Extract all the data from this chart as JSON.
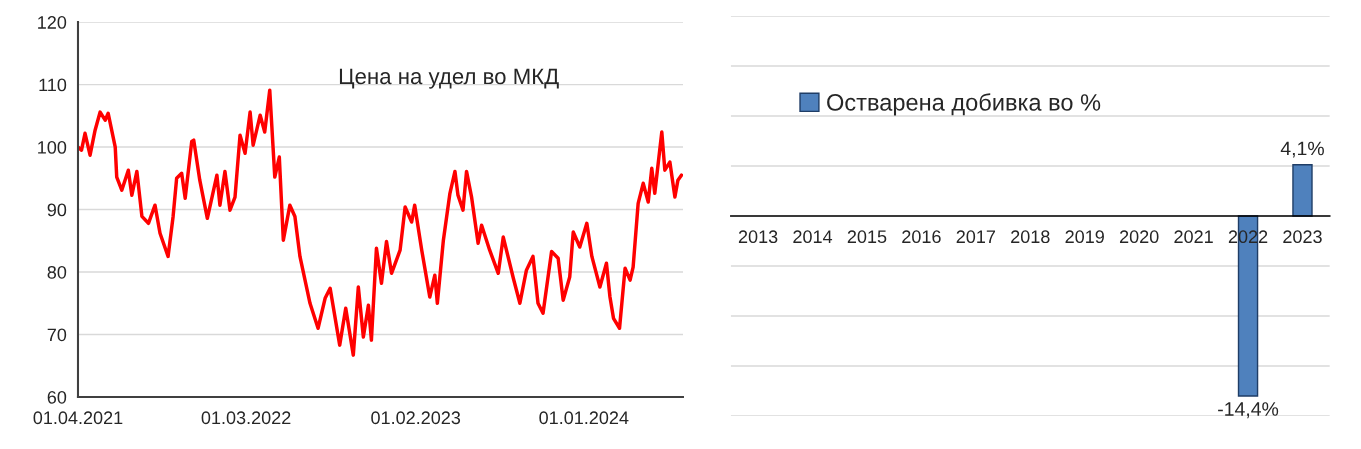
{
  "chart_data": [
    {
      "type": "line",
      "ylim": [
        60,
        120
      ],
      "yticks": [
        60,
        70,
        80,
        90,
        100,
        110,
        120
      ],
      "xlim": [
        "2021-04-01",
        "2024-07-16"
      ],
      "xticks": [
        {
          "value": "2021-04-01",
          "label": "01.04.2021"
        },
        {
          "value": "2022-03-01",
          "label": "01.03.2022"
        },
        {
          "value": "2023-02-01",
          "label": "01.02.2023"
        },
        {
          "value": "2024-01-01",
          "label": "01.01.2024"
        }
      ],
      "grid": "y",
      "legend": false,
      "series": [
        {
          "name": "Цена на удел во МКД",
          "color": "#ff0000",
          "line_style": "solid",
          "marker": "none",
          "x": [
            "2021-04-01",
            "2021-04-08",
            "2021-04-15",
            "2021-04-25",
            "2021-05-05",
            "2021-05-15",
            "2021-05-25",
            "2021-05-31",
            "2021-06-14",
            "2021-06-17",
            "2021-06-27",
            "2021-07-10",
            "2021-07-17",
            "2021-07-27",
            "2021-08-06",
            "2021-08-19",
            "2021-09-01",
            "2021-09-11",
            "2021-09-27",
            "2021-10-07",
            "2021-10-14",
            "2021-10-24",
            "2021-10-31",
            "2021-11-13",
            "2021-11-17",
            "2021-11-29",
            "2021-12-14",
            "2022-01-02",
            "2022-01-08",
            "2022-01-18",
            "2022-01-28",
            "2022-02-07",
            "2022-02-17",
            "2022-02-27",
            "2022-03-09",
            "2022-03-15",
            "2022-03-29",
            "2022-04-07",
            "2022-04-17",
            "2022-04-27",
            "2022-05-06",
            "2022-05-14",
            "2022-05-27",
            "2022-06-06",
            "2022-06-16",
            "2022-07-06",
            "2022-07-22",
            "2022-08-05",
            "2022-08-15",
            "2022-09-03",
            "2022-09-15",
            "2022-09-30",
            "2022-10-10",
            "2022-10-20",
            "2022-10-30",
            "2022-11-05",
            "2022-11-15",
            "2022-11-25",
            "2022-12-05",
            "2022-12-15",
            "2023-01-01",
            "2023-01-11",
            "2023-01-24",
            "2023-01-30",
            "2023-02-13",
            "2023-03-01",
            "2023-03-11",
            "2023-03-16",
            "2023-03-28",
            "2023-04-10",
            "2023-04-20",
            "2023-04-26",
            "2023-05-06",
            "2023-05-13",
            "2023-05-23",
            "2023-06-05",
            "2023-06-12",
            "2023-06-28",
            "2023-07-15",
            "2023-07-25",
            "2023-08-14",
            "2023-08-27",
            "2023-09-09",
            "2023-09-22",
            "2023-10-02",
            "2023-10-12",
            "2023-10-29",
            "2023-11-11",
            "2023-11-21",
            "2023-12-04",
            "2023-12-11",
            "2023-12-24",
            "2024-01-07",
            "2024-01-17",
            "2024-02-02",
            "2024-02-15",
            "2024-02-22",
            "2024-02-29",
            "2024-03-12",
            "2024-03-23",
            "2024-04-02",
            "2024-04-08",
            "2024-04-18",
            "2024-04-28",
            "2024-05-08",
            "2024-05-15",
            "2024-05-21",
            "2024-06-04",
            "2024-06-10",
            "2024-06-20",
            "2024-06-30",
            "2024-07-06",
            "2024-07-13"
          ],
          "values": [
            100,
            99.5,
            102.2,
            98.7,
            102.7,
            105.6,
            104.3,
            105.4,
            100,
            95.2,
            93.1,
            96.3,
            92.3,
            96.1,
            88.9,
            87.8,
            90.7,
            86.2,
            82.5,
            88.9,
            95,
            95.8,
            91.8,
            100.9,
            101.1,
            94.7,
            88.6,
            95.5,
            90.7,
            96.1,
            89.9,
            92,
            101.9,
            99,
            105.6,
            100.3,
            105.1,
            102.4,
            109.1,
            95.2,
            98.4,
            85.1,
            90.7,
            88.9,
            82.5,
            75,
            71,
            75.8,
            77.4,
            68.3,
            74.2,
            66.7,
            77.6,
            69.6,
            74.7,
            69.1,
            83.8,
            78.2,
            84.9,
            79.8,
            83.5,
            90.4,
            88,
            90.7,
            83.5,
            76,
            79.5,
            75,
            85.1,
            92.6,
            96.1,
            92.3,
            89.9,
            96.1,
            92,
            84.6,
            87.5,
            83.5,
            79.8,
            85.6,
            79,
            75,
            80.3,
            82.5,
            75,
            73.4,
            83.3,
            82.2,
            75.5,
            79.2,
            86.4,
            84,
            87.8,
            82.5,
            77.6,
            81.4,
            76,
            72.6,
            71,
            80.6,
            78.7,
            80.8,
            91,
            94.2,
            91.2,
            96.6,
            92.6,
            102.4,
            96.3,
            97.6,
            92,
            94.7,
            95.5
          ]
        }
      ]
    },
    {
      "type": "bar",
      "categories": [
        "2013",
        "2014",
        "2015",
        "2016",
        "2017",
        "2018",
        "2019",
        "2020",
        "2021",
        "2022",
        "2023"
      ],
      "ylim": [
        -16,
        16
      ],
      "yticks": [
        {
          "value": -16,
          "label": null
        },
        {
          "value": -12,
          "label": null
        },
        {
          "value": -8,
          "label": null
        },
        {
          "value": -4,
          "label": null
        },
        {
          "value": 0,
          "label": null
        },
        {
          "value": 4,
          "label": null
        },
        {
          "value": 8,
          "label": null
        },
        {
          "value": 12,
          "label": null
        },
        {
          "value": 16,
          "label": null
        }
      ],
      "grid": "y",
      "legend": "top left",
      "tick_labels": "x",
      "series": [
        {
          "name": "Остварена добивка во %",
          "color": "#4f81bd",
          "values": [
            null,
            null,
            null,
            null,
            null,
            null,
            null,
            null,
            null,
            -14.4,
            4.1
          ],
          "value_labels": [
            null,
            null,
            null,
            null,
            null,
            null,
            null,
            null,
            null,
            "-14,4%",
            "4,1%"
          ]
        }
      ]
    }
  ]
}
